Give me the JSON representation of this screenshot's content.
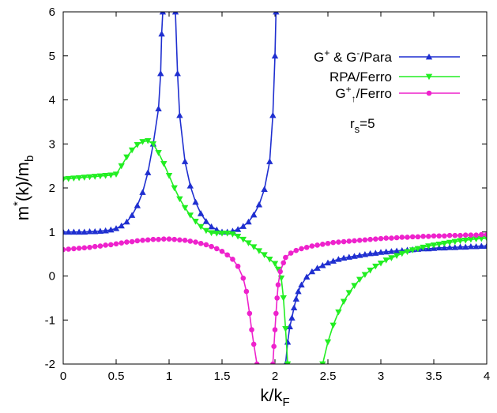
{
  "chart_data": {
    "type": "line",
    "xlabel": {
      "base": "k/k",
      "sub": "F"
    },
    "ylabel": {
      "base": "m",
      "sup": "*",
      "mid": "(k)/m",
      "sub": "b"
    },
    "xlim": [
      0,
      4
    ],
    "ylim": [
      -2,
      6
    ],
    "xticks": [
      "0",
      "0.5",
      "1",
      "1.5",
      "2",
      "2.5",
      "3",
      "3.5",
      "4"
    ],
    "yticks": [
      "-2",
      "-1",
      "0",
      "1",
      "2",
      "3",
      "4",
      "5",
      "6"
    ],
    "legend_position": "top-right",
    "annotation": {
      "base": "r",
      "sub": "s",
      "rest": "=5"
    },
    "series": [
      {
        "name": "G+ & G-/Para",
        "legend": [
          {
            "t": "G"
          },
          {
            "t": "+",
            "k": "sup"
          },
          {
            "t": " & G"
          },
          {
            "t": "-",
            "k": "sup"
          },
          {
            "t": "/Para"
          }
        ],
        "color": "#1f2fd0",
        "marker": "triangle-up",
        "segments": [
          [
            [
              0,
              1.0
            ],
            [
              0.05,
              1.0
            ],
            [
              0.1,
              1.0
            ],
            [
              0.15,
              1.0
            ],
            [
              0.2,
              1.0
            ],
            [
              0.25,
              1.01
            ],
            [
              0.3,
              1.01
            ],
            [
              0.35,
              1.02
            ],
            [
              0.4,
              1.03
            ],
            [
              0.45,
              1.05
            ],
            [
              0.5,
              1.08
            ],
            [
              0.55,
              1.14
            ],
            [
              0.6,
              1.23
            ],
            [
              0.65,
              1.38
            ],
            [
              0.7,
              1.6
            ],
            [
              0.75,
              1.9
            ],
            [
              0.8,
              2.35
            ],
            [
              0.85,
              3.0
            ],
            [
              0.9,
              3.8
            ],
            [
              0.92,
              4.6
            ],
            [
              0.93,
              5.5
            ],
            [
              0.94,
              6.0
            ]
          ],
          [
            [
              1.06,
              6.0
            ],
            [
              1.08,
              4.6
            ],
            [
              1.1,
              3.65
            ],
            [
              1.15,
              2.6
            ],
            [
              1.2,
              2.05
            ],
            [
              1.25,
              1.68
            ],
            [
              1.3,
              1.42
            ],
            [
              1.35,
              1.24
            ],
            [
              1.4,
              1.12
            ],
            [
              1.45,
              1.05
            ],
            [
              1.5,
              1.0
            ],
            [
              1.55,
              1.0
            ],
            [
              1.6,
              1.02
            ],
            [
              1.65,
              1.06
            ],
            [
              1.7,
              1.13
            ],
            [
              1.75,
              1.23
            ],
            [
              1.8,
              1.39
            ],
            [
              1.85,
              1.62
            ],
            [
              1.9,
              1.97
            ],
            [
              1.95,
              2.6
            ],
            [
              1.98,
              3.65
            ],
            [
              2.0,
              5.0
            ],
            [
              2.01,
              6.0
            ]
          ],
          [
            [
              2.1,
              -2.0
            ],
            [
              2.12,
              -1.5
            ],
            [
              2.14,
              -1.15
            ],
            [
              2.16,
              -0.95
            ],
            [
              2.18,
              -0.72
            ],
            [
              2.2,
              -0.52
            ],
            [
              2.22,
              -0.35
            ],
            [
              2.25,
              -0.2
            ],
            [
              2.3,
              -0.02
            ],
            [
              2.35,
              0.1
            ],
            [
              2.4,
              0.18
            ],
            [
              2.45,
              0.24
            ],
            [
              2.5,
              0.3
            ],
            [
              2.55,
              0.34
            ],
            [
              2.6,
              0.38
            ],
            [
              2.65,
              0.41
            ],
            [
              2.7,
              0.43
            ],
            [
              2.75,
              0.45
            ],
            [
              2.8,
              0.47
            ],
            [
              2.85,
              0.49
            ],
            [
              2.9,
              0.51
            ],
            [
              2.95,
              0.52
            ],
            [
              3.0,
              0.54
            ],
            [
              3.05,
              0.55
            ],
            [
              3.1,
              0.56
            ],
            [
              3.15,
              0.57
            ],
            [
              3.2,
              0.58
            ],
            [
              3.25,
              0.59
            ],
            [
              3.3,
              0.6
            ],
            [
              3.35,
              0.61
            ],
            [
              3.4,
              0.62
            ],
            [
              3.45,
              0.62
            ],
            [
              3.5,
              0.63
            ],
            [
              3.55,
              0.64
            ],
            [
              3.6,
              0.64
            ],
            [
              3.65,
              0.65
            ],
            [
              3.7,
              0.65
            ],
            [
              3.75,
              0.66
            ],
            [
              3.8,
              0.66
            ],
            [
              3.85,
              0.67
            ],
            [
              3.9,
              0.67
            ],
            [
              3.95,
              0.68
            ],
            [
              4.0,
              0.68
            ]
          ]
        ]
      },
      {
        "name": "RPA/Ferro",
        "legend": [
          {
            "t": "RPA/Ferro"
          }
        ],
        "color": "#22ee22",
        "marker": "triangle-down",
        "segments": [
          [
            [
              0,
              2.2
            ],
            [
              0.05,
              2.21
            ],
            [
              0.1,
              2.22
            ],
            [
              0.15,
              2.23
            ],
            [
              0.2,
              2.24
            ],
            [
              0.25,
              2.25
            ],
            [
              0.3,
              2.26
            ],
            [
              0.35,
              2.27
            ],
            [
              0.4,
              2.28
            ],
            [
              0.45,
              2.29
            ],
            [
              0.5,
              2.31
            ],
            [
              0.55,
              2.5
            ],
            [
              0.6,
              2.7
            ],
            [
              0.65,
              2.86
            ],
            [
              0.7,
              2.98
            ],
            [
              0.75,
              3.05
            ],
            [
              0.8,
              3.07
            ],
            [
              0.85,
              3.0
            ],
            [
              0.9,
              2.8
            ],
            [
              0.95,
              2.55
            ],
            [
              1.0,
              2.28
            ],
            [
              1.05,
              2.0
            ],
            [
              1.1,
              1.75
            ],
            [
              1.15,
              1.55
            ],
            [
              1.2,
              1.38
            ],
            [
              1.25,
              1.24
            ],
            [
              1.3,
              1.12
            ],
            [
              1.35,
              1.03
            ],
            [
              1.4,
              0.98
            ],
            [
              1.45,
              0.97
            ],
            [
              1.5,
              0.97
            ],
            [
              1.55,
              0.97
            ],
            [
              1.6,
              0.95
            ],
            [
              1.65,
              0.9
            ],
            [
              1.7,
              0.83
            ],
            [
              1.75,
              0.75
            ],
            [
              1.8,
              0.66
            ],
            [
              1.85,
              0.57
            ],
            [
              1.9,
              0.48
            ],
            [
              1.95,
              0.38
            ],
            [
              2.0,
              0.28
            ],
            [
              2.03,
              0.15
            ],
            [
              2.06,
              -0.05
            ],
            [
              2.08,
              -0.5
            ],
            [
              2.1,
              -1.2
            ],
            [
              2.12,
              -2.0
            ]
          ],
          [
            [
              2.45,
              -2.0
            ],
            [
              2.5,
              -1.5
            ],
            [
              2.55,
              -1.12
            ],
            [
              2.6,
              -0.82
            ],
            [
              2.65,
              -0.58
            ],
            [
              2.7,
              -0.38
            ],
            [
              2.75,
              -0.22
            ],
            [
              2.8,
              -0.08
            ],
            [
              2.85,
              0.03
            ],
            [
              2.9,
              0.13
            ],
            [
              2.95,
              0.22
            ],
            [
              3.0,
              0.29
            ],
            [
              3.05,
              0.36
            ],
            [
              3.1,
              0.41
            ],
            [
              3.15,
              0.46
            ],
            [
              3.2,
              0.51
            ],
            [
              3.25,
              0.55
            ],
            [
              3.3,
              0.59
            ],
            [
              3.35,
              0.62
            ],
            [
              3.4,
              0.65
            ],
            [
              3.45,
              0.68
            ],
            [
              3.5,
              0.7
            ],
            [
              3.55,
              0.72
            ],
            [
              3.6,
              0.74
            ],
            [
              3.65,
              0.76
            ],
            [
              3.7,
              0.78
            ],
            [
              3.75,
              0.8
            ],
            [
              3.8,
              0.81
            ],
            [
              3.85,
              0.83
            ],
            [
              3.9,
              0.84
            ],
            [
              3.95,
              0.85
            ],
            [
              4.0,
              0.86
            ]
          ]
        ]
      },
      {
        "name": "G+↑/Ferro",
        "legend": [
          {
            "t": "G"
          },
          {
            "t": "+",
            "k": "sup"
          },
          {
            "t": "↑",
            "k": "sub"
          },
          {
            "t": "/Ferro"
          }
        ],
        "color": "#ee22cc",
        "marker": "circle",
        "segments": [
          [
            [
              0,
              0.6
            ],
            [
              0.05,
              0.61
            ],
            [
              0.1,
              0.62
            ],
            [
              0.15,
              0.63
            ],
            [
              0.2,
              0.64
            ],
            [
              0.25,
              0.65
            ],
            [
              0.3,
              0.67
            ],
            [
              0.35,
              0.68
            ],
            [
              0.4,
              0.7
            ],
            [
              0.45,
              0.71
            ],
            [
              0.5,
              0.73
            ],
            [
              0.55,
              0.75
            ],
            [
              0.6,
              0.77
            ],
            [
              0.65,
              0.78
            ],
            [
              0.7,
              0.8
            ],
            [
              0.75,
              0.81
            ],
            [
              0.8,
              0.82
            ],
            [
              0.85,
              0.83
            ],
            [
              0.9,
              0.83
            ],
            [
              0.95,
              0.84
            ],
            [
              1.0,
              0.84
            ],
            [
              1.05,
              0.83
            ],
            [
              1.1,
              0.82
            ],
            [
              1.15,
              0.81
            ],
            [
              1.2,
              0.79
            ],
            [
              1.25,
              0.77
            ],
            [
              1.3,
              0.74
            ],
            [
              1.35,
              0.71
            ],
            [
              1.4,
              0.67
            ],
            [
              1.45,
              0.62
            ],
            [
              1.5,
              0.56
            ],
            [
              1.55,
              0.48
            ],
            [
              1.6,
              0.38
            ],
            [
              1.65,
              0.22
            ],
            [
              1.7,
              -0.05
            ],
            [
              1.73,
              -0.35
            ],
            [
              1.76,
              -0.85
            ],
            [
              1.78,
              -1.22
            ],
            [
              1.8,
              -1.55
            ],
            [
              1.83,
              -2.0
            ]
          ],
          [
            [
              1.98,
              -2.0
            ],
            [
              1.99,
              -1.6
            ],
            [
              2.0,
              -1.22
            ],
            [
              2.01,
              -0.85
            ],
            [
              2.02,
              -0.5
            ],
            [
              2.03,
              -0.2
            ],
            [
              2.05,
              0.1
            ],
            [
              2.08,
              0.3
            ],
            [
              2.1,
              0.42
            ],
            [
              2.15,
              0.52
            ],
            [
              2.2,
              0.58
            ],
            [
              2.25,
              0.62
            ],
            [
              2.3,
              0.65
            ],
            [
              2.35,
              0.68
            ],
            [
              2.4,
              0.7
            ],
            [
              2.45,
              0.72
            ],
            [
              2.5,
              0.74
            ],
            [
              2.55,
              0.76
            ],
            [
              2.6,
              0.77
            ],
            [
              2.65,
              0.78
            ],
            [
              2.7,
              0.79
            ],
            [
              2.75,
              0.8
            ],
            [
              2.8,
              0.81
            ],
            [
              2.85,
              0.82
            ],
            [
              2.9,
              0.83
            ],
            [
              2.95,
              0.84
            ],
            [
              3.0,
              0.85
            ],
            [
              3.05,
              0.86
            ],
            [
              3.1,
              0.86
            ],
            [
              3.15,
              0.87
            ],
            [
              3.2,
              0.88
            ],
            [
              3.25,
              0.88
            ],
            [
              3.3,
              0.89
            ],
            [
              3.35,
              0.89
            ],
            [
              3.4,
              0.9
            ],
            [
              3.45,
              0.9
            ],
            [
              3.5,
              0.91
            ],
            [
              3.55,
              0.91
            ],
            [
              3.6,
              0.91
            ],
            [
              3.65,
              0.92
            ],
            [
              3.7,
              0.92
            ],
            [
              3.75,
              0.92
            ],
            [
              3.8,
              0.93
            ],
            [
              3.85,
              0.93
            ],
            [
              3.9,
              0.93
            ],
            [
              3.95,
              0.94
            ],
            [
              4.0,
              0.94
            ]
          ]
        ]
      }
    ]
  }
}
